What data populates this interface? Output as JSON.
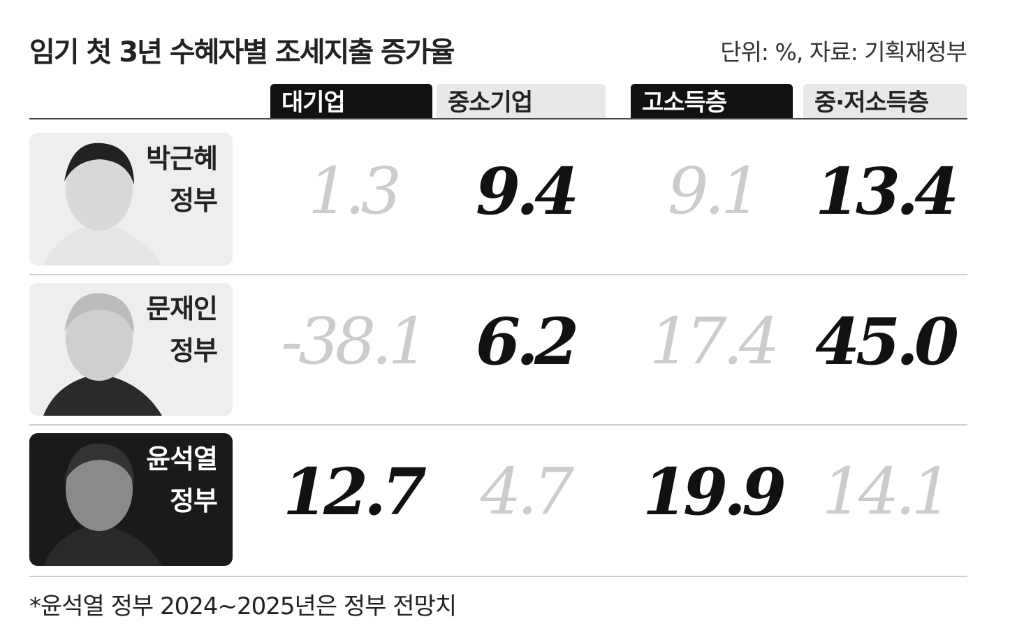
{
  "header": {
    "title": "임기 첫 3년 수혜자별 조세지출 증가율",
    "unit": "단위: %, 자료: 기획재정부"
  },
  "table": {
    "columns": [
      "대기업",
      "중소기업",
      "고소득층",
      "중·저소득층"
    ],
    "rows": [
      {
        "name": [
          "박근혜",
          "정부"
        ],
        "values": [
          "1.3",
          "9.4",
          "9.1",
          "13.4"
        ]
      },
      {
        "name": [
          "문재인",
          "정부"
        ],
        "values": [
          "-38.1",
          "6.2",
          "17.4",
          "45.0"
        ]
      },
      {
        "name": [
          "윤석열",
          "정부"
        ],
        "values": [
          "12.7",
          "4.7",
          "19.9",
          "14.1"
        ]
      }
    ]
  },
  "footnote": "*윤석열 정부 2024~2025년은 정부 전망치"
}
